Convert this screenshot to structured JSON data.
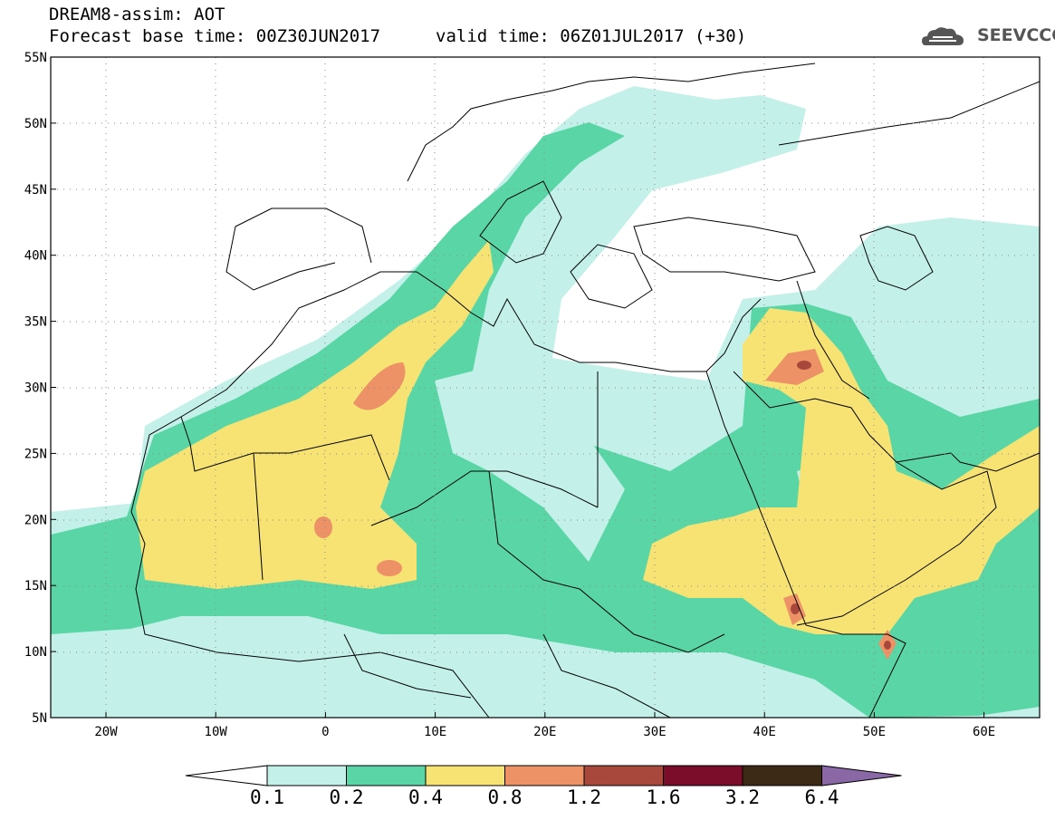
{
  "header": {
    "line1": "DREAM8-assim: AOT",
    "line2": "Forecast base time: 00Z30JUN2017",
    "valid": "valid time: 06Z01JUL2017 (+30)",
    "logo_text": "SEEVCCC"
  },
  "map": {
    "lon_range": [
      -25,
      65
    ],
    "lat_range": [
      5,
      55
    ],
    "lat_ticks": [
      "55N",
      "50N",
      "45N",
      "40N",
      "35N",
      "30N",
      "25N",
      "20N",
      "15N",
      "10N",
      "5N"
    ],
    "lon_ticks": [
      "20W",
      "10W",
      "0",
      "10E",
      "20E",
      "30E",
      "40E",
      "50E",
      "60E"
    ],
    "grid": "dotted"
  },
  "colorbar": {
    "labels": [
      "0.1",
      "0.2",
      "0.4",
      "0.8",
      "1.2",
      "1.6",
      "3.2",
      "6.4"
    ],
    "colors": [
      "#ffffff",
      "#c4f0ea",
      "#5ad6a6",
      "#f6e374",
      "#ec9266",
      "#a8483c",
      "#7b0c2a",
      "#3c2a16",
      "#8a68a6"
    ]
  }
}
